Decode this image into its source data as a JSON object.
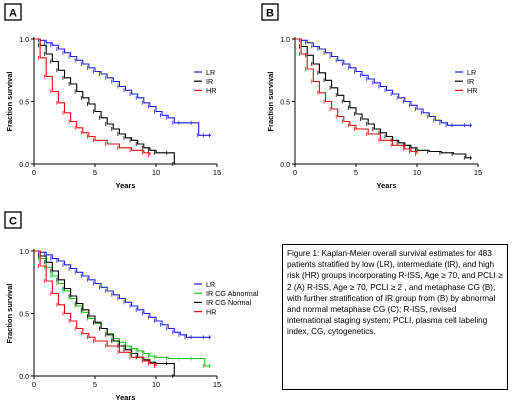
{
  "caption": "Figure 1: Kaplan-Meier overall survival estimates for 483 patients stratified by low (LR), intermediate (IR), and high risk (HR) groups incorporating R-ISS, Age ≥ 70, and PCLI ≥ 2 (A) R-ISS, Age ≥ 70, PCLI ≥ 2 , and metaphase CG (B), with further stratification of IR group from (B) by abnormal and normal metaphase CG (C); R-ISS, revised international staging system; PCLI, plasma cell labeling index, CG, cytogenetics.",
  "colors": {
    "LR": "#1f1fe0",
    "IR": "#000000",
    "HR": "#e01010",
    "IR CG Abnormal": "#19c019",
    "IR CG Normal": "#000000"
  },
  "chart_data": [
    {
      "panel": "A",
      "type": "line",
      "step": true,
      "title": "",
      "xlabel": "Years",
      "ylabel": "Fraction survival",
      "xlim": [
        0,
        15
      ],
      "ylim": [
        0,
        1.0
      ],
      "xticks": [
        0,
        5,
        10,
        15
      ],
      "yticks": [
        0.0,
        0.5,
        1.0
      ],
      "ytick_labels": [
        "0.0",
        "0.5",
        "1.0"
      ],
      "legend": "right",
      "series": [
        {
          "name": "LR",
          "x": [
            0,
            0.5,
            1,
            1.5,
            2,
            2.5,
            3,
            3.5,
            4,
            4.5,
            5,
            5.5,
            6,
            6.5,
            7,
            7.5,
            8,
            8.5,
            9,
            9.5,
            10,
            10.5,
            11,
            11.5,
            12,
            13,
            13.5,
            14,
            14.5
          ],
          "y": [
            1.0,
            0.99,
            0.97,
            0.95,
            0.92,
            0.89,
            0.86,
            0.83,
            0.8,
            0.77,
            0.74,
            0.72,
            0.69,
            0.66,
            0.62,
            0.59,
            0.56,
            0.53,
            0.49,
            0.46,
            0.42,
            0.39,
            0.37,
            0.33,
            0.33,
            0.33,
            0.23,
            0.23,
            0.23
          ]
        },
        {
          "name": "IR",
          "x": [
            0,
            0.5,
            1,
            1.5,
            2,
            2.5,
            3,
            3.5,
            4,
            4.5,
            5,
            5.5,
            6,
            6.5,
            7,
            7.5,
            8,
            8.5,
            9,
            9.5,
            10,
            11,
            11.5
          ],
          "y": [
            1.0,
            0.95,
            0.88,
            0.82,
            0.75,
            0.69,
            0.64,
            0.58,
            0.53,
            0.48,
            0.42,
            0.37,
            0.32,
            0.28,
            0.24,
            0.21,
            0.19,
            0.16,
            0.13,
            0.11,
            0.09,
            0.09,
            0.0
          ]
        },
        {
          "name": "HR",
          "x": [
            0,
            0.5,
            1,
            1.5,
            2,
            2.5,
            3,
            3.5,
            4,
            4.5,
            5,
            6,
            7,
            8,
            9,
            9.5
          ],
          "y": [
            1.0,
            0.85,
            0.7,
            0.58,
            0.49,
            0.41,
            0.34,
            0.29,
            0.25,
            0.22,
            0.19,
            0.16,
            0.13,
            0.11,
            0.09,
            0.07
          ]
        }
      ]
    },
    {
      "panel": "B",
      "type": "line",
      "step": true,
      "title": "",
      "xlabel": "Years",
      "ylabel": "Fraction survival",
      "xlim": [
        0,
        15
      ],
      "ylim": [
        0,
        1.0
      ],
      "xticks": [
        0,
        5,
        10,
        15
      ],
      "yticks": [
        0.0,
        0.5,
        1.0
      ],
      "ytick_labels": [
        "0.0",
        "0.5",
        "1.0"
      ],
      "legend": "right",
      "series": [
        {
          "name": "LR",
          "x": [
            0,
            0.5,
            1,
            1.5,
            2,
            2.5,
            3,
            3.5,
            4,
            4.5,
            5,
            5.5,
            6,
            6.5,
            7,
            7.5,
            8,
            8.5,
            9,
            9.5,
            10,
            10.5,
            11,
            11.5,
            12,
            12.5,
            13,
            14,
            14.5
          ],
          "y": [
            1.0,
            0.99,
            0.97,
            0.94,
            0.92,
            0.89,
            0.86,
            0.83,
            0.8,
            0.77,
            0.74,
            0.71,
            0.68,
            0.65,
            0.62,
            0.59,
            0.56,
            0.53,
            0.5,
            0.47,
            0.44,
            0.41,
            0.38,
            0.35,
            0.33,
            0.31,
            0.31,
            0.31,
            0.31
          ]
        },
        {
          "name": "IR",
          "x": [
            0,
            0.5,
            1,
            1.5,
            2,
            2.5,
            3,
            3.5,
            4,
            4.5,
            5,
            5.5,
            6,
            6.5,
            7,
            7.5,
            8,
            8.5,
            9,
            9.5,
            10,
            11,
            12,
            13,
            14,
            14.5
          ],
          "y": [
            1.0,
            0.94,
            0.87,
            0.8,
            0.73,
            0.67,
            0.61,
            0.55,
            0.5,
            0.45,
            0.4,
            0.36,
            0.32,
            0.28,
            0.25,
            0.22,
            0.19,
            0.17,
            0.15,
            0.13,
            0.11,
            0.1,
            0.09,
            0.08,
            0.05,
            0.05
          ]
        },
        {
          "name": "HR",
          "x": [
            0,
            0.5,
            1,
            1.5,
            2,
            2.5,
            3,
            3.5,
            4,
            4.5,
            5,
            6,
            7,
            8,
            9,
            9.5,
            10
          ],
          "y": [
            1.0,
            0.88,
            0.76,
            0.66,
            0.57,
            0.5,
            0.44,
            0.38,
            0.34,
            0.31,
            0.28,
            0.24,
            0.19,
            0.15,
            0.12,
            0.1,
            0.08
          ]
        }
      ]
    },
    {
      "panel": "C",
      "type": "line",
      "step": true,
      "title": "",
      "xlabel": "Years",
      "ylabel": "Fraction survival",
      "xlim": [
        0,
        15
      ],
      "ylim": [
        0,
        1.0
      ],
      "xticks": [
        0,
        5,
        10,
        15
      ],
      "yticks": [
        0.0,
        0.5,
        1.0
      ],
      "ytick_labels": [
        "0.0",
        "0.5",
        "1.0"
      ],
      "legend": "right",
      "series": [
        {
          "name": "LR",
          "x": [
            0,
            0.5,
            1,
            1.5,
            2,
            2.5,
            3,
            3.5,
            4,
            4.5,
            5,
            5.5,
            6,
            6.5,
            7,
            7.5,
            8,
            8.5,
            9,
            9.5,
            10,
            10.5,
            11,
            11.5,
            12,
            12.5,
            13,
            14,
            14.5
          ],
          "y": [
            1.0,
            0.99,
            0.97,
            0.94,
            0.92,
            0.89,
            0.86,
            0.83,
            0.8,
            0.77,
            0.74,
            0.71,
            0.68,
            0.65,
            0.62,
            0.59,
            0.56,
            0.53,
            0.5,
            0.47,
            0.44,
            0.41,
            0.38,
            0.35,
            0.33,
            0.31,
            0.31,
            0.31,
            0.31
          ]
        },
        {
          "name": "IR CG Abnormal",
          "x": [
            0,
            0.5,
            1,
            1.5,
            2,
            2.5,
            3,
            3.5,
            4,
            4.5,
            5,
            5.5,
            6,
            6.5,
            7,
            7.5,
            8,
            8.5,
            9,
            9.5,
            10,
            11,
            12,
            13,
            14,
            14.5
          ],
          "y": [
            1.0,
            0.94,
            0.87,
            0.8,
            0.74,
            0.68,
            0.62,
            0.56,
            0.51,
            0.46,
            0.42,
            0.38,
            0.34,
            0.3,
            0.27,
            0.24,
            0.22,
            0.2,
            0.18,
            0.16,
            0.15,
            0.14,
            0.14,
            0.14,
            0.08,
            0.08
          ]
        },
        {
          "name": "IR CG Normal",
          "x": [
            0,
            0.5,
            1,
            1.5,
            2,
            2.5,
            3,
            3.5,
            4,
            4.5,
            5,
            5.5,
            6,
            6.5,
            7,
            7.5,
            8,
            8.5,
            9,
            9.5,
            10,
            11,
            11.5
          ],
          "y": [
            1.0,
            0.96,
            0.91,
            0.84,
            0.77,
            0.7,
            0.64,
            0.58,
            0.53,
            0.48,
            0.43,
            0.38,
            0.33,
            0.28,
            0.24,
            0.21,
            0.18,
            0.15,
            0.13,
            0.11,
            0.1,
            0.1,
            0.0
          ]
        },
        {
          "name": "HR",
          "x": [
            0,
            0.5,
            1,
            1.5,
            2,
            2.5,
            3,
            3.5,
            4,
            4.5,
            5,
            6,
            7,
            8,
            9,
            9.5,
            10
          ],
          "y": [
            1.0,
            0.88,
            0.76,
            0.66,
            0.57,
            0.5,
            0.44,
            0.38,
            0.34,
            0.31,
            0.28,
            0.24,
            0.19,
            0.15,
            0.12,
            0.1,
            0.08
          ]
        }
      ]
    }
  ]
}
